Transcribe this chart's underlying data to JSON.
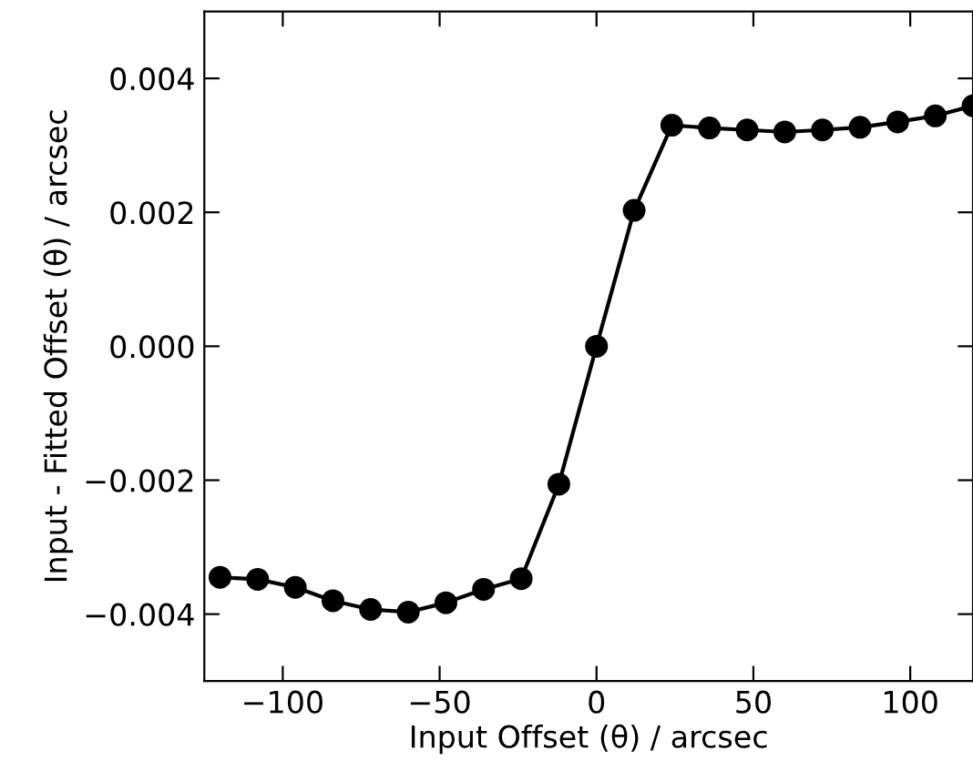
{
  "chart_data": {
    "type": "line",
    "xlabel": "Input Offset (θ) / arcsec",
    "ylabel": "Input - Fitted Offset (θ) / arcsec",
    "x": [
      -120,
      -108,
      -96,
      -84,
      -72,
      -60,
      -48,
      -36,
      -24,
      -12,
      0,
      12,
      24,
      36,
      48,
      60,
      72,
      84,
      96,
      108,
      120
    ],
    "series": [
      {
        "color": "#000000",
        "values": [
          -0.00345,
          -0.00348,
          -0.0036,
          -0.0038,
          -0.00393,
          -0.00397,
          -0.00383,
          -0.00363,
          -0.00347,
          -0.00206,
          0.0,
          0.00203,
          0.0033,
          0.00326,
          0.00323,
          0.0032,
          0.00323,
          0.00327,
          0.00335,
          0.00344,
          0.00359
        ]
      }
    ],
    "marker": "circle",
    "line_style": "solid",
    "grid": false,
    "legend": false,
    "xlim": [
      -125,
      120
    ],
    "ylim": [
      -0.005,
      0.005
    ],
    "xticks": [
      {
        "value": -100,
        "label": "−100"
      },
      {
        "value": -50,
        "label": "−50"
      },
      0,
      50,
      100
    ],
    "yticks": [
      {
        "value": -0.004,
        "label": "−0.004"
      },
      {
        "value": -0.002,
        "label": "−0.002"
      },
      {
        "value": 0,
        "label": "0.000"
      },
      0.002,
      0.004
    ]
  }
}
